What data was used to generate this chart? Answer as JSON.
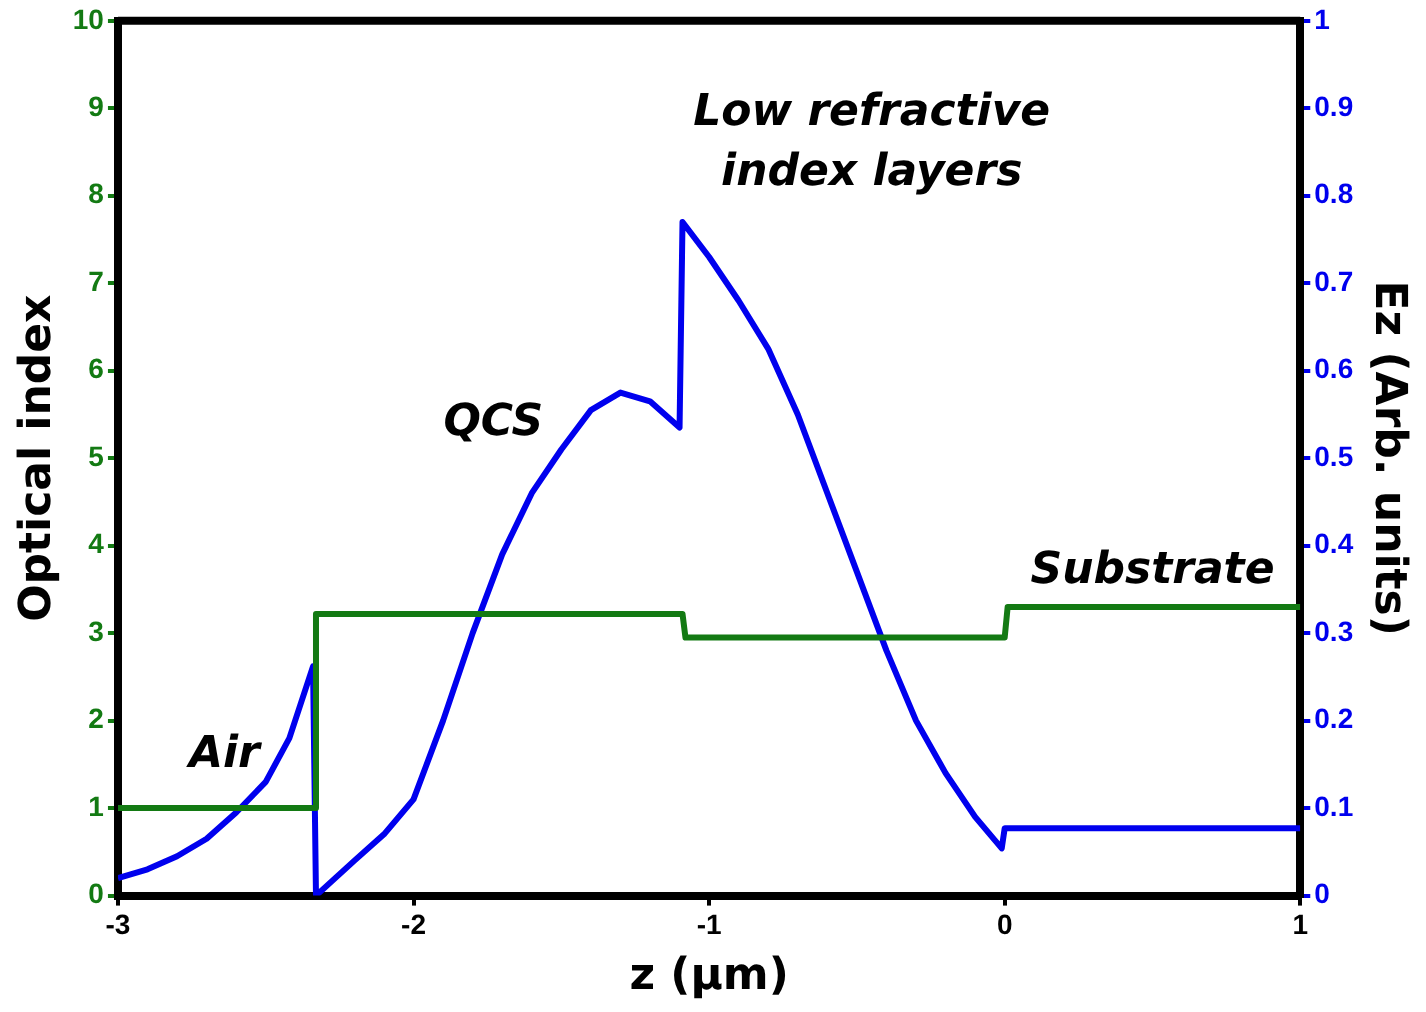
{
  "chart_data": {
    "type": "line",
    "xlabel": "z (μm)",
    "ylabel": "Optical index",
    "y2label": "Ez (Arb. units)",
    "xlim": [
      -3,
      1
    ],
    "xticks": [
      -3,
      -2,
      -1,
      0,
      1
    ],
    "ylim": [
      0,
      10
    ],
    "yticks": [
      0,
      1,
      2,
      3,
      4,
      5,
      6,
      7,
      8,
      9,
      10
    ],
    "y2lim": [
      0,
      1
    ],
    "y2ticks": [
      0,
      0.1,
      0.2,
      0.3,
      0.4,
      0.5,
      0.6,
      0.7,
      0.8,
      0.9,
      1
    ],
    "legend": false,
    "series": [
      {
        "color": "#137a13",
        "x": [
          -3,
          -2.33,
          -2.33,
          -1.09,
          -1.08,
          0,
          0.01,
          1
        ],
        "values": [
          1,
          1,
          3.22,
          3.22,
          2.95,
          2.95,
          3.3,
          3.3
        ]
      },
      {
        "color": "#0000ee",
        "axis": "y2",
        "x": [
          -3,
          -2.9,
          -2.8,
          -2.7,
          -2.6,
          -2.5,
          -2.42,
          -2.34,
          -2.33,
          -2.2,
          -2.1,
          -2.0,
          -1.9,
          -1.8,
          -1.7,
          -1.6,
          -1.5,
          -1.4,
          -1.3,
          -1.2,
          -1.1,
          -1.09,
          -1.0,
          -0.9,
          -0.8,
          -0.7,
          -0.6,
          -0.5,
          -0.4,
          -0.3,
          -0.2,
          -0.1,
          -0.01,
          0,
          1
        ],
        "values": [
          0.02,
          0.03,
          0.045,
          0.065,
          0.095,
          0.13,
          0.18,
          0.262,
          0,
          0.04,
          0.07,
          0.11,
          0.2,
          0.3,
          0.39,
          0.46,
          0.51,
          0.555,
          0.575,
          0.565,
          0.535,
          0.77,
          0.73,
          0.68,
          0.625,
          0.55,
          0.46,
          0.37,
          0.28,
          0.2,
          0.14,
          0.09,
          0.054,
          0.077,
          0.077
        ]
      }
    ],
    "annotations": [
      "Air",
      "QCS",
      "Low refractive\nindex layers",
      "Substrate"
    ]
  }
}
